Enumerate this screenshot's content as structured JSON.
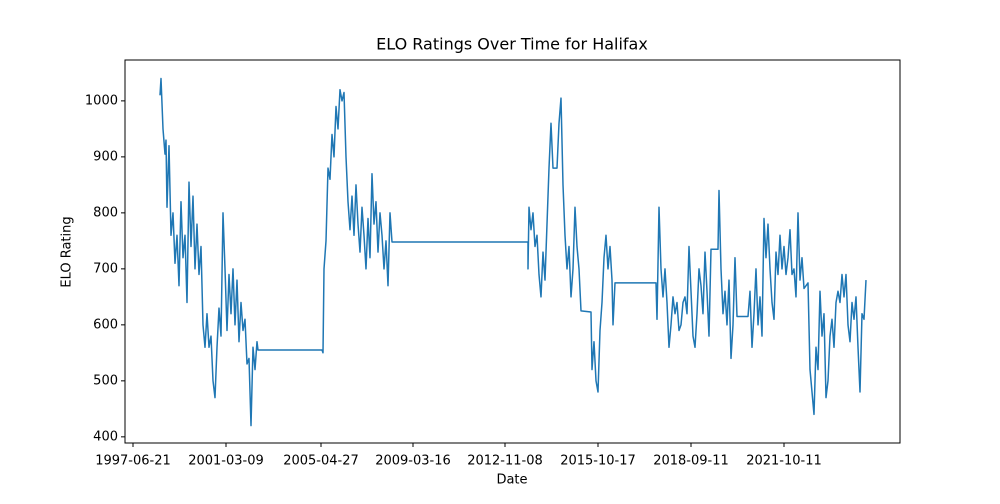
{
  "chart_data": {
    "type": "line",
    "title": "ELO Ratings Over Time for Halifax",
    "x_label": "Date",
    "y_label": "ELO Rating",
    "xlim": [
      -8,
      767
    ],
    "ylim": [
      389,
      1073
    ],
    "xticks": [
      {
        "value": 0,
        "label": "1997-06-21"
      },
      {
        "value": 93,
        "label": "2001-03-09"
      },
      {
        "value": 188,
        "label": "2005-04-27"
      },
      {
        "value": 280,
        "label": "2009-03-16"
      },
      {
        "value": 372,
        "label": "2012-11-08"
      },
      {
        "value": 465,
        "label": "2015-10-17"
      },
      {
        "value": 558,
        "label": "2018-09-11"
      },
      {
        "value": 651,
        "label": "2021-10-11"
      }
    ],
    "yticks": [
      400,
      500,
      600,
      700,
      800,
      900,
      1000
    ],
    "grid": false,
    "series": [
      {
        "name": "Halifax",
        "color": "#1f77b4",
        "x": [
          27,
          28,
          30,
          32,
          33,
          34,
          36,
          38,
          40,
          42,
          44,
          46,
          48,
          50,
          52,
          54,
          56,
          58,
          60,
          62,
          64,
          66,
          68,
          70,
          72,
          74,
          76,
          78,
          80,
          82,
          84,
          86,
          88,
          90,
          92,
          94,
          96,
          98,
          100,
          102,
          104,
          106,
          108,
          110,
          112,
          114,
          116,
          118,
          120,
          122,
          124,
          125,
          189,
          190,
          191,
          193,
          195,
          197,
          199,
          201,
          203,
          205,
          207,
          209,
          211,
          213,
          215,
          217,
          219,
          221,
          223,
          225,
          227,
          229,
          231,
          233,
          235,
          237,
          239,
          241,
          243,
          245,
          247,
          249,
          251,
          253,
          255,
          257,
          259,
          395,
          395,
          396,
          398,
          400,
          402,
          404,
          406,
          408,
          410,
          412,
          414,
          416,
          418,
          420,
          424,
          426,
          428,
          430,
          432,
          434,
          436,
          438,
          440,
          442,
          444,
          446,
          448,
          458,
          459,
          461,
          463,
          465,
          467,
          469,
          471,
          473,
          475,
          477,
          479,
          480,
          482,
          523,
          524,
          526,
          528,
          530,
          532,
          534,
          536,
          538,
          540,
          542,
          544,
          546,
          548,
          550,
          552,
          554,
          556,
          558,
          560,
          562,
          564,
          566,
          568,
          570,
          572,
          574,
          576,
          578,
          585,
          586,
          588,
          590,
          592,
          594,
          596,
          598,
          600,
          602,
          604,
          615,
          617,
          619,
          621,
          623,
          625,
          627,
          629,
          631,
          633,
          635,
          637,
          639,
          641,
          643,
          645,
          647,
          649,
          651,
          653,
          655,
          657,
          659,
          661,
          663,
          665,
          667,
          669,
          671,
          675,
          677,
          679,
          681,
          683,
          685,
          687,
          689,
          691,
          693,
          695,
          697,
          699,
          701,
          703,
          705,
          707,
          709,
          711,
          713,
          715,
          717,
          719,
          721,
          723,
          725,
          727,
          729,
          731,
          733
        ],
        "values": [
          1010,
          1040,
          950,
          905,
          930,
          810,
          920,
          760,
          800,
          710,
          760,
          670,
          820,
          720,
          760,
          640,
          855,
          740,
          830,
          700,
          780,
          690,
          740,
          600,
          560,
          620,
          560,
          580,
          500,
          470,
          560,
          630,
          580,
          800,
          700,
          590,
          690,
          620,
          700,
          600,
          680,
          570,
          640,
          590,
          610,
          530,
          540,
          420,
          560,
          520,
          570,
          555,
          555,
          550,
          700,
          750,
          880,
          860,
          940,
          900,
          990,
          950,
          1020,
          1000,
          1015,
          900,
          820,
          770,
          830,
          760,
          850,
          780,
          730,
          810,
          760,
          700,
          790,
          720,
          870,
          780,
          820,
          730,
          800,
          760,
          700,
          750,
          670,
          800,
          748,
          748,
          700,
          810,
          770,
          800,
          740,
          760,
          690,
          650,
          730,
          680,
          780,
          880,
          960,
          880,
          880,
          960,
          1005,
          850,
          760,
          700,
          740,
          650,
          700,
          810,
          740,
          700,
          625,
          623,
          520,
          570,
          500,
          480,
          590,
          640,
          720,
          760,
          700,
          740,
          680,
          600,
          675,
          675,
          610,
          810,
          700,
          650,
          700,
          640,
          560,
          600,
          650,
          620,
          640,
          590,
          600,
          640,
          650,
          620,
          740,
          660,
          580,
          560,
          620,
          700,
          670,
          620,
          730,
          660,
          580,
          735,
          735,
          840,
          700,
          620,
          660,
          600,
          680,
          540,
          600,
          720,
          615,
          615,
          660,
          560,
          620,
          700,
          600,
          650,
          580,
          790,
          720,
          780,
          700,
          640,
          610,
          730,
          690,
          760,
          700,
          740,
          690,
          720,
          770,
          690,
          700,
          650,
          800,
          680,
          720,
          665,
          675,
          520,
          480,
          440,
          560,
          520,
          660,
          580,
          620,
          470,
          500,
          580,
          610,
          560,
          640,
          660,
          640,
          690,
          650,
          690,
          600,
          570,
          640,
          610,
          650,
          560,
          480,
          620,
          610,
          680
        ]
      }
    ]
  }
}
